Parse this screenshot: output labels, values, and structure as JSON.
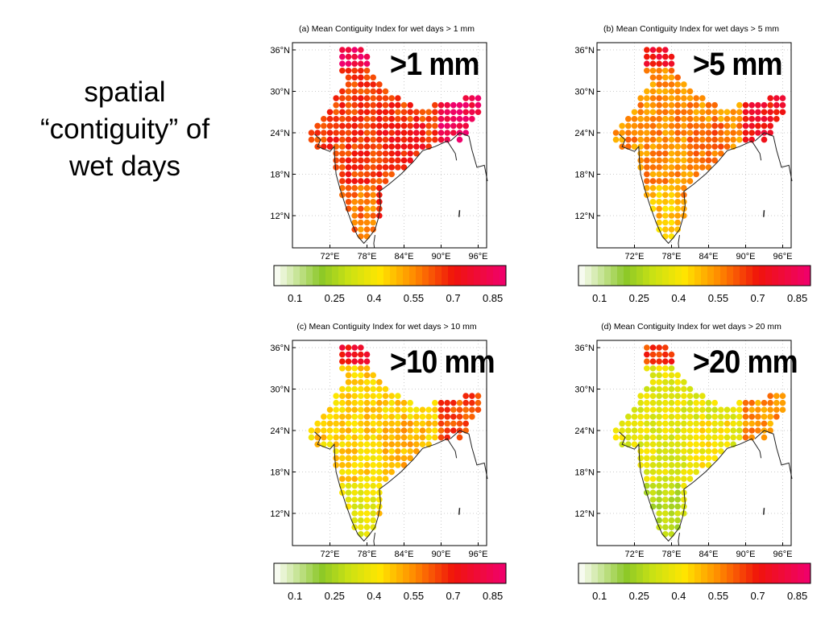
{
  "slide_text": {
    "line1": "spatial",
    "line2": "“contiguity” of",
    "line3": "wet days"
  },
  "panels": [
    {
      "title": "(a) Mean Contiguity Index for wet days > 1 mm",
      "label": ">1 mm",
      "level": 0.66
    },
    {
      "title": "(b) Mean Contiguity Index for wet days > 5 mm",
      "label": ">5 mm",
      "level": 0.55
    },
    {
      "title": "(c) Mean Contiguity Index for wet days > 10 mm",
      "label": ">10 mm",
      "level": 0.45
    },
    {
      "title": "(d) Mean Contiguity Index for wet days > 20 mm",
      "label": ">20 mm",
      "level": 0.36
    }
  ],
  "lat_ticks": [
    "36°N",
    "30°N",
    "24°N",
    "18°N",
    "12°N"
  ],
  "lon_ticks": [
    "72°E",
    "78°E",
    "84°E",
    "90°E",
    "96°E"
  ],
  "colorbar_ticks": [
    "0.1",
    "0.25",
    "0.4",
    "0.55",
    "0.7",
    "0.85"
  ],
  "colorbar_range": [
    0.02,
    0.9
  ]
}
